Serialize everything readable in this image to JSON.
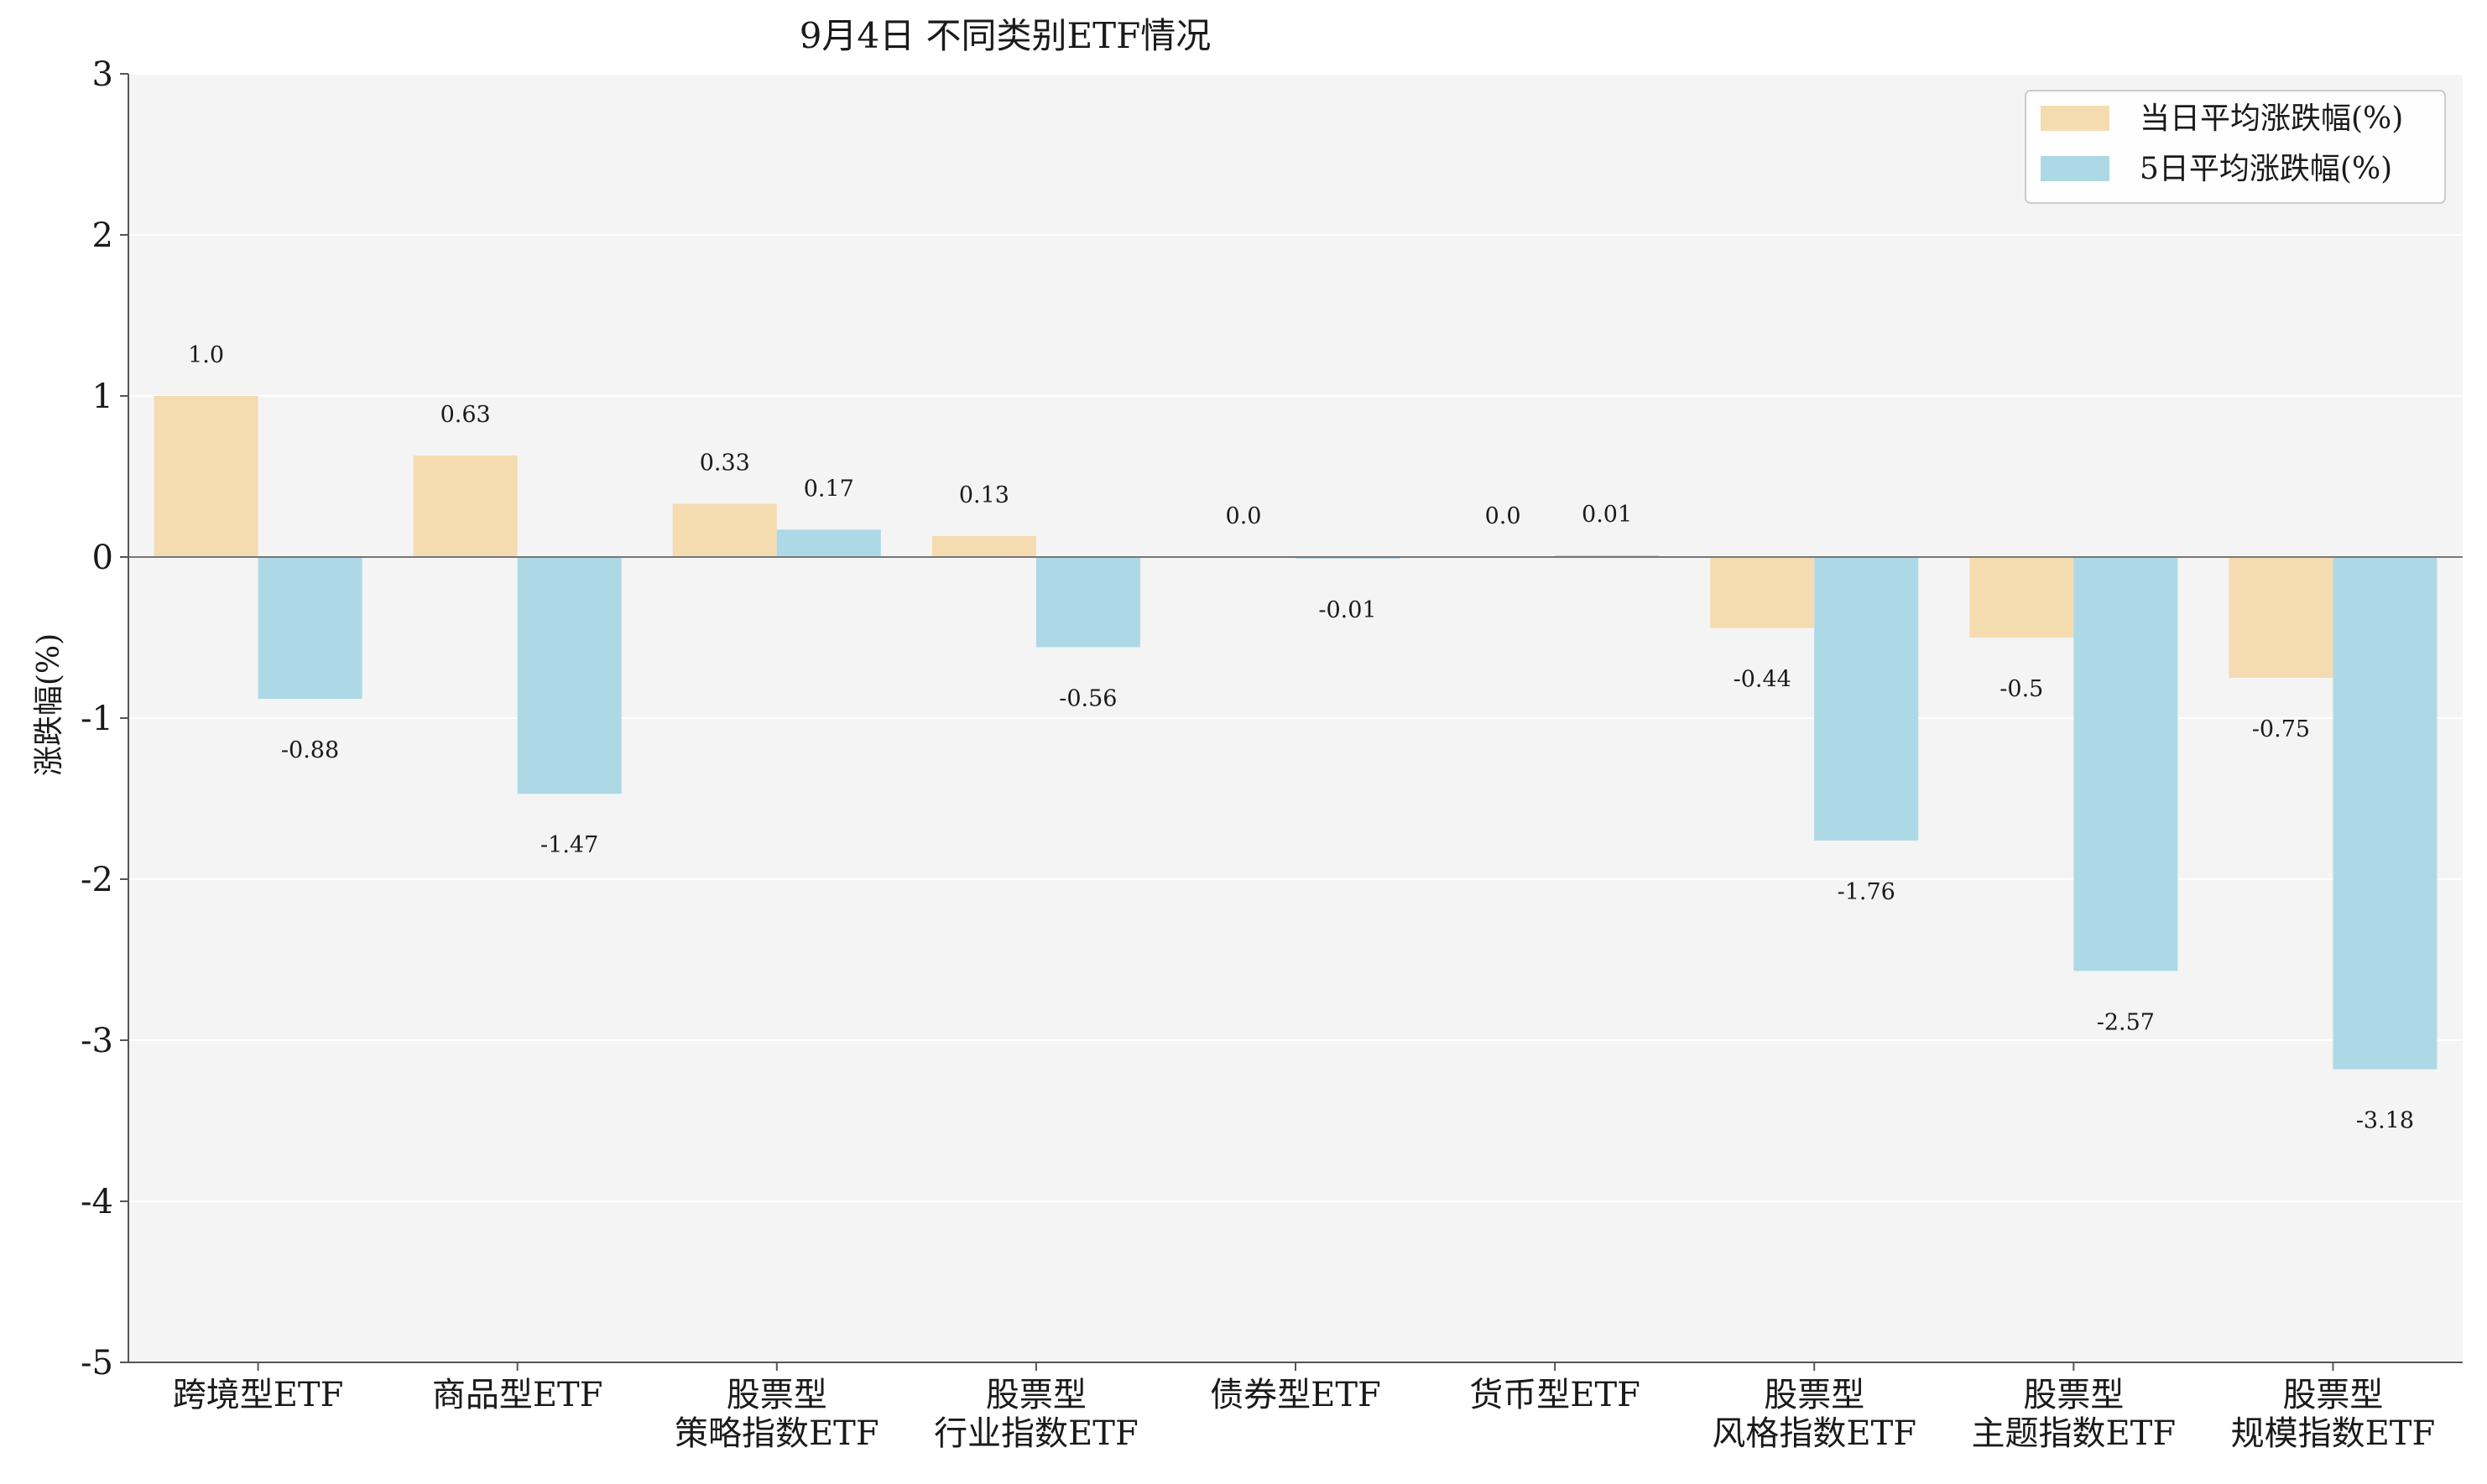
{
  "chart_data": {
    "type": "bar",
    "title": "9月4日 不同类别ETF情况",
    "xlabel": "",
    "ylabel": "涨跌幅(%)",
    "ylim": [
      -5,
      3
    ],
    "yticks": [
      3,
      2,
      1,
      0,
      -1,
      -2,
      -3,
      -4,
      -5
    ],
    "grid": true,
    "legend_position": "top-right",
    "categories": [
      [
        "跨境型ETF"
      ],
      [
        "商品型ETF"
      ],
      [
        "股票型",
        "策略指数ETF"
      ],
      [
        "股票型",
        "行业指数ETF"
      ],
      [
        "债券型ETF"
      ],
      [
        "货币型ETF"
      ],
      [
        "股票型",
        "风格指数ETF"
      ],
      [
        "股票型",
        "主题指数ETF"
      ],
      [
        "股票型",
        "规模指数ETF"
      ]
    ],
    "series": [
      {
        "name": "当日平均涨跌幅(%)",
        "color": "#f5dcb0",
        "values": [
          1.0,
          0.63,
          0.33,
          0.13,
          0.0,
          0.0,
          -0.44,
          -0.5,
          -0.75
        ],
        "labels": [
          "1.0",
          "0.63",
          "0.33",
          "0.13",
          "0.0",
          "0.0",
          "-0.44",
          "-0.5",
          "-0.75"
        ]
      },
      {
        "name": "5日平均涨跌幅(%)",
        "color": "#add8e6",
        "values": [
          -0.88,
          -1.47,
          0.17,
          -0.56,
          -0.01,
          0.01,
          -1.76,
          -2.57,
          -3.18
        ],
        "labels": [
          "-0.88",
          "-1.47",
          "0.17",
          "-0.56",
          "-0.01",
          "0.01",
          "-1.76",
          "-2.57",
          "-3.18"
        ]
      }
    ],
    "plot_background": "#f4f4f4",
    "axis_color": "#555555"
  }
}
